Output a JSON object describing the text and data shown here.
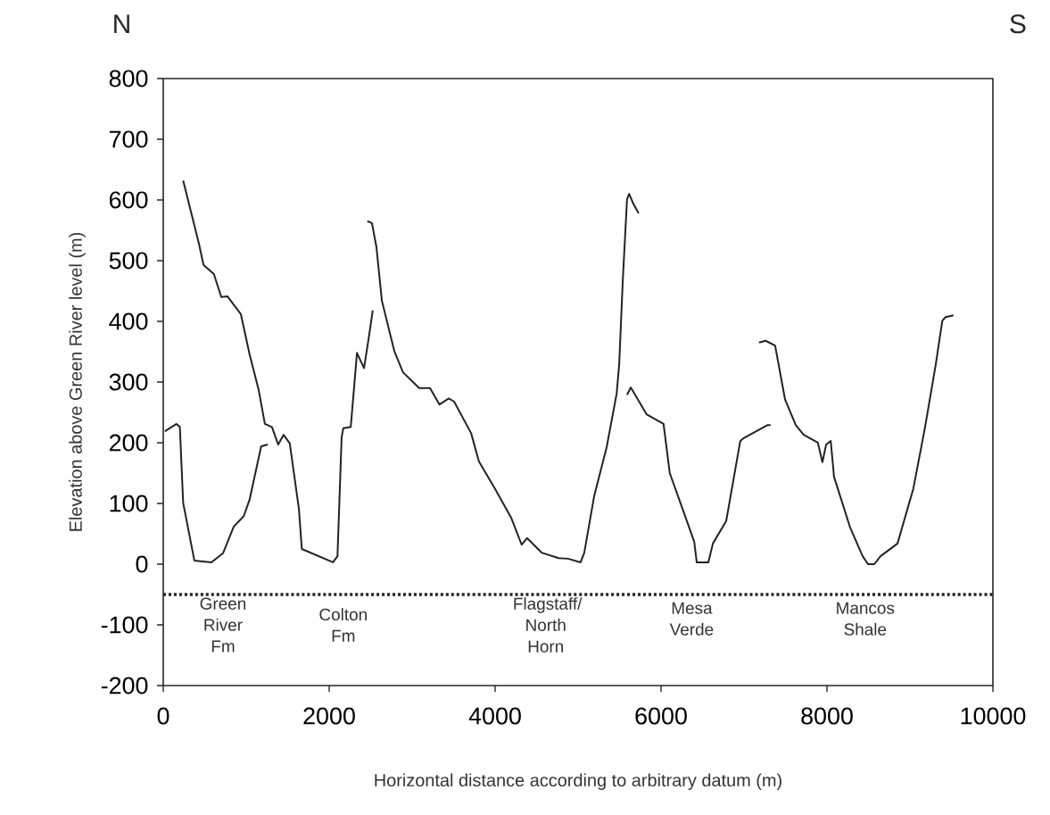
{
  "chart_data": {
    "type": "line",
    "xlabel": "Horizontal distance according to arbitrary datum (m)",
    "ylabel": "Elevation above Green River level (m)",
    "xlim": [
      0,
      10000
    ],
    "ylim": [
      -200,
      800
    ],
    "xticks": [
      0,
      2000,
      4000,
      6000,
      8000,
      10000
    ],
    "yticks": [
      -200,
      -100,
      0,
      100,
      200,
      300,
      400,
      500,
      600,
      700,
      800
    ],
    "grid": false,
    "marker": "none",
    "line_style": "solid",
    "series": [
      {
        "color": "#222222",
        "x": [
          20,
          160,
          200,
          240,
          375,
          580,
          720,
          850,
          970,
          1040,
          1180,
          1260
        ],
        "values": [
          219,
          231,
          226,
          101,
          6,
          3,
          18,
          62,
          79,
          106,
          194,
          197
        ]
      },
      {
        "color": "#222222",
        "x": [
          240,
          430,
          485,
          610,
          700,
          775,
          935,
          1040,
          1150,
          1225,
          1310,
          1385,
          1450,
          1525,
          1635,
          1670,
          2045,
          2100,
          2150,
          2170,
          2260,
          2335,
          2420,
          2475,
          2525
        ],
        "values": [
          632,
          528,
          493,
          478,
          440,
          441,
          412,
          346,
          287,
          231,
          226,
          197,
          213,
          199,
          91,
          25,
          3,
          13,
          209,
          224,
          226,
          348,
          323,
          371,
          418
        ]
      },
      {
        "color": "#222222",
        "x": [
          2460,
          2515,
          2570,
          2635,
          2785,
          2890,
          3085,
          3215,
          3330,
          3440,
          3505,
          3710,
          3805,
          4000,
          4195,
          4320,
          4385,
          4560,
          4765,
          4880,
          5030,
          5075,
          5195,
          5345,
          5465,
          5495,
          5540,
          5590,
          5615,
          5665,
          5730
        ],
        "values": [
          565,
          562,
          522,
          434,
          351,
          316,
          290,
          290,
          263,
          273,
          268,
          216,
          169,
          124,
          76,
          32,
          43,
          19,
          10,
          9,
          3,
          19,
          113,
          193,
          281,
          328,
          471,
          601,
          610,
          594,
          578
        ]
      },
      {
        "color": "#222222",
        "x": [
          5590,
          5635,
          5825,
          6030,
          6105,
          6270,
          6400,
          6430,
          6570,
          6625,
          6785,
          6955,
          6990,
          7280,
          7320
        ],
        "values": [
          279,
          291,
          247,
          231,
          150,
          87,
          37,
          3,
          3,
          34,
          71,
          203,
          207,
          229,
          229
        ]
      },
      {
        "color": "#222222",
        "x": [
          7180,
          7260,
          7375,
          7495,
          7625,
          7720,
          7890,
          7945,
          7990,
          8045,
          8085,
          8280,
          8430,
          8495,
          8570,
          8645,
          8850,
          9040,
          9180,
          9310,
          9390,
          9430,
          9525
        ],
        "values": [
          365,
          368,
          360,
          271,
          229,
          213,
          200,
          168,
          197,
          203,
          144,
          60,
          13,
          0,
          0,
          13,
          34,
          124,
          224,
          328,
          401,
          407,
          410
        ]
      }
    ],
    "ref_lines": [
      {
        "axis": "y",
        "value": -50,
        "color": "#222222",
        "line_style": "dotted"
      }
    ],
    "annotations": [
      "N",
      "S",
      "Green River Fm",
      "Colton Fm",
      "Flagstaff/North Horn",
      "Mesa Verde",
      "Mancos Shale"
    ]
  }
}
